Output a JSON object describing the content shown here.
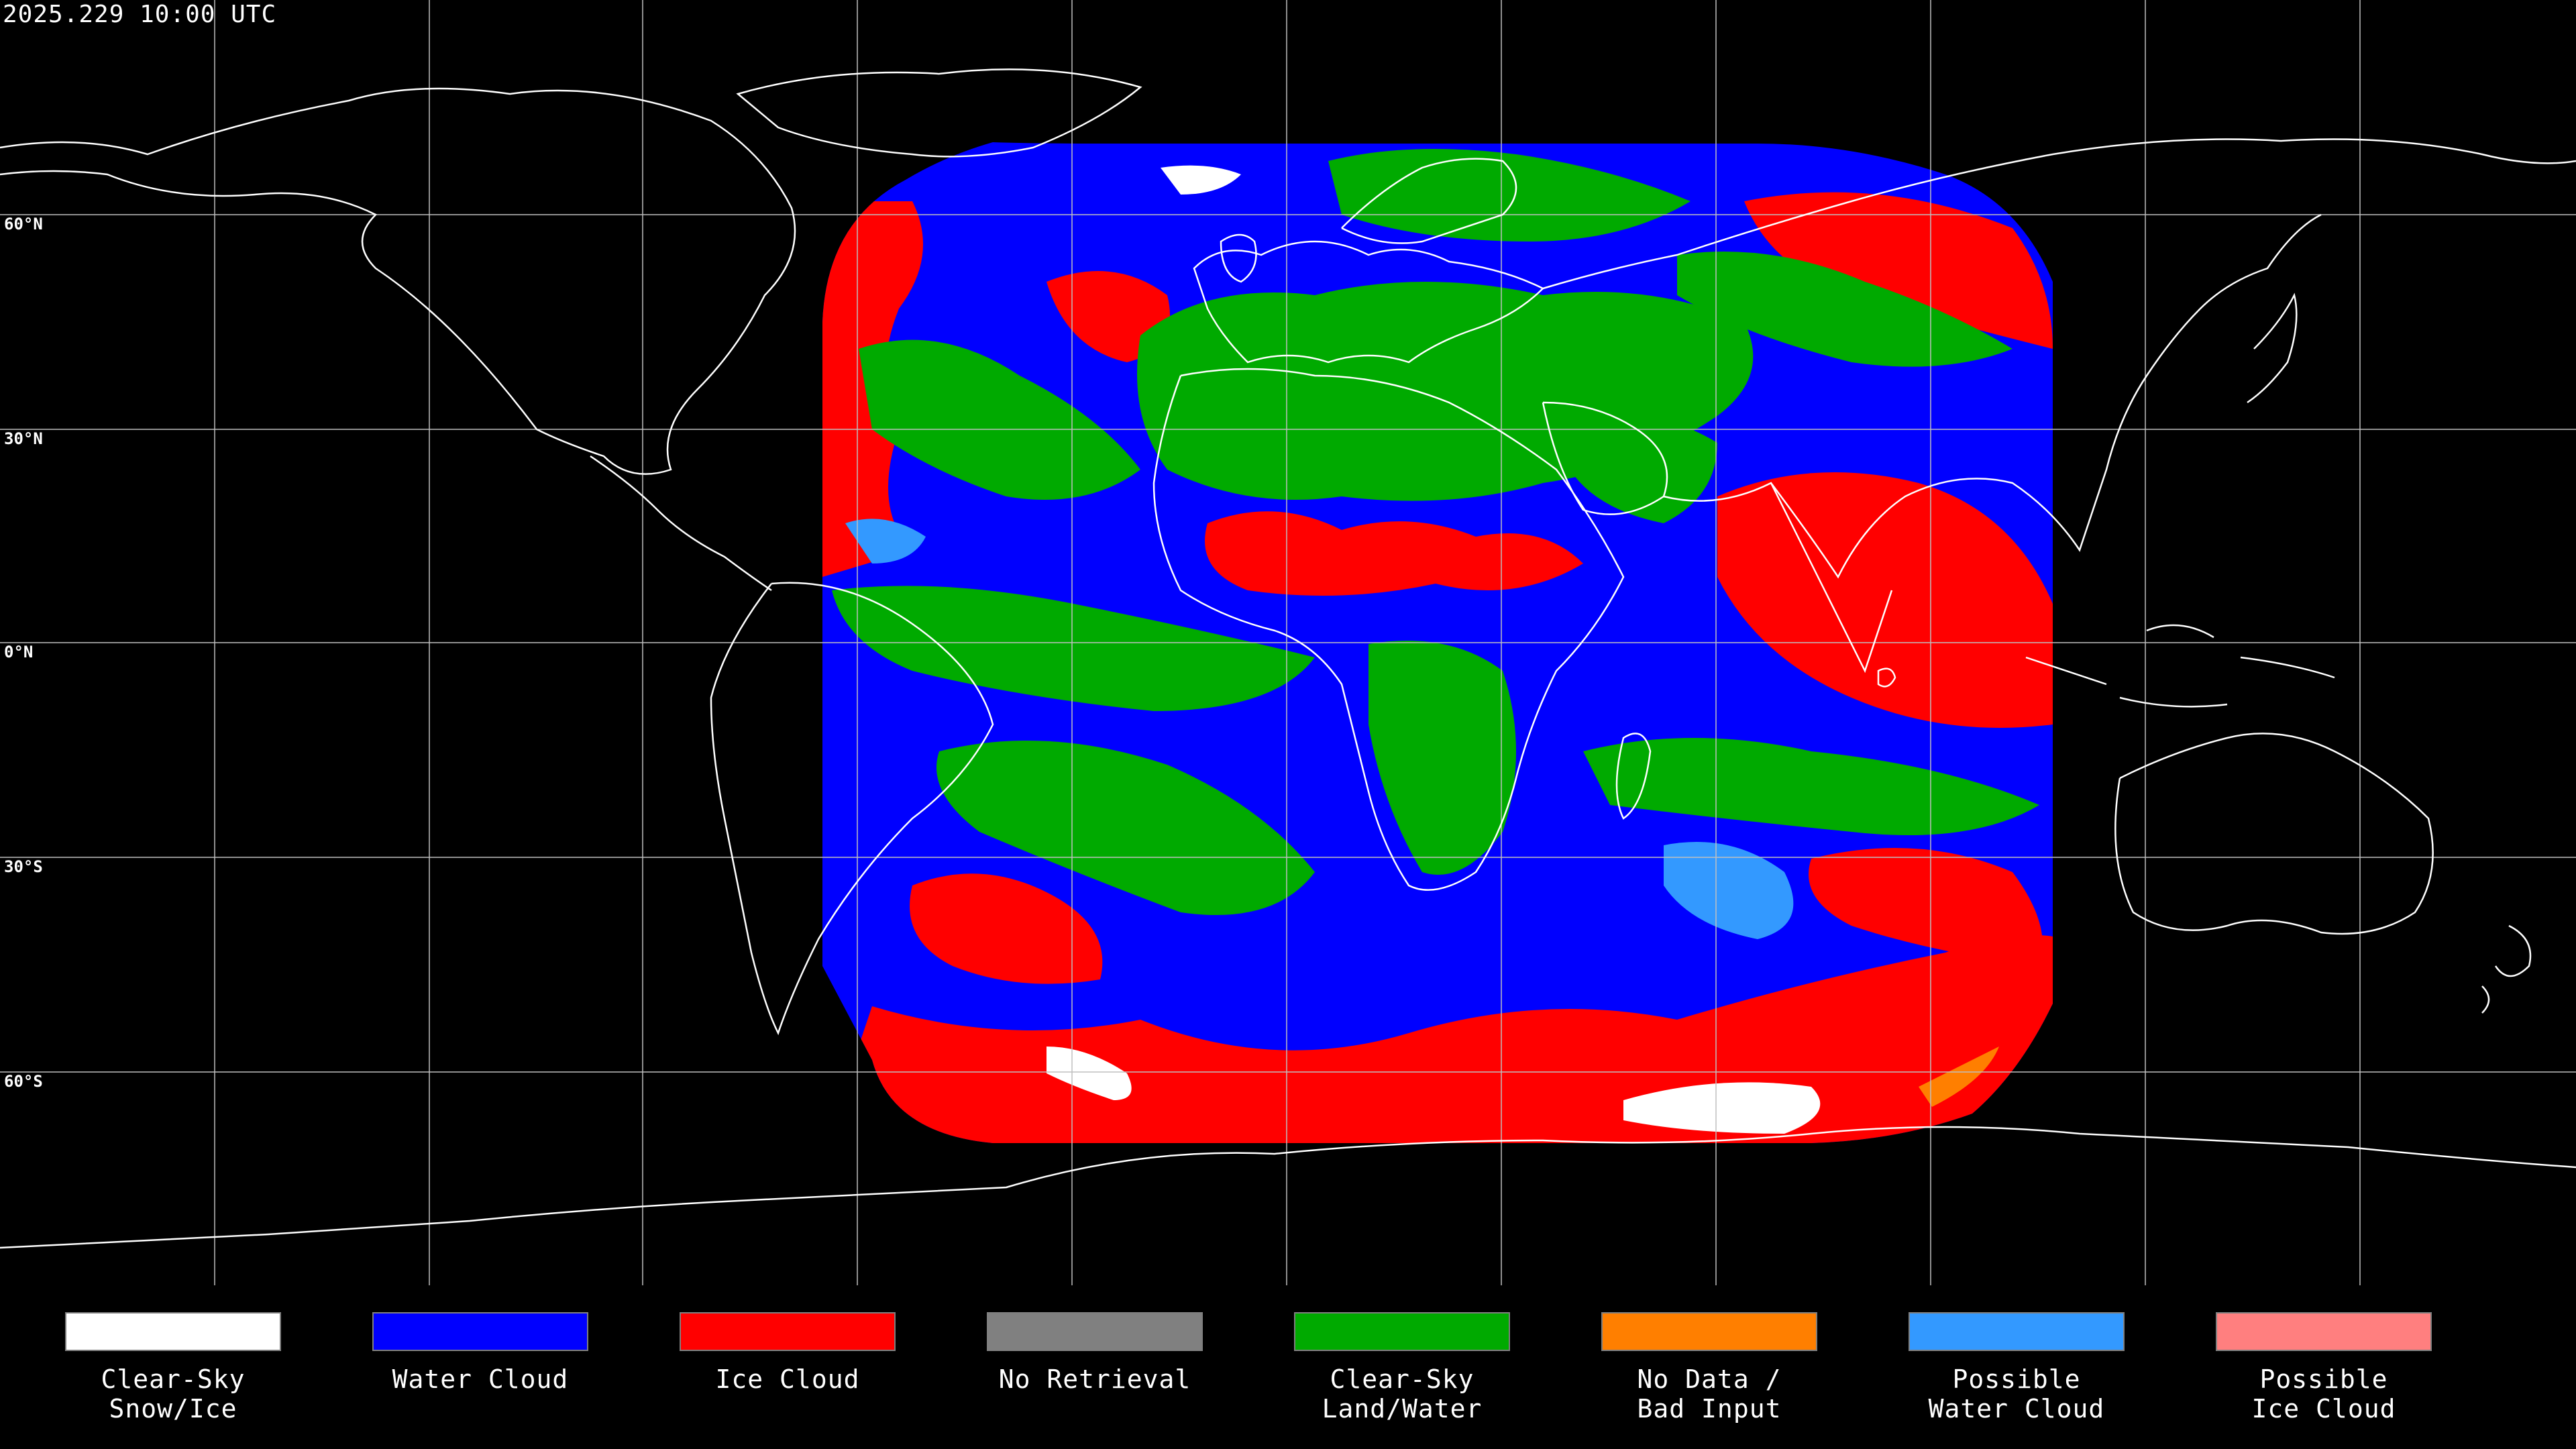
{
  "header": {
    "timestamp": "2025.229 10:00 UTC"
  },
  "map": {
    "lat_labels": [
      "60°N",
      "30°N",
      "0°N",
      "30°S",
      "60°S"
    ],
    "grid_color": "#bfbfbf",
    "coast_color": "#ffffff"
  },
  "legend": {
    "items": [
      {
        "label": "Clear-Sky\nSnow/Ice",
        "color": "#ffffff"
      },
      {
        "label": "Water Cloud",
        "color": "#0000ff"
      },
      {
        "label": "Ice Cloud",
        "color": "#ff0000"
      },
      {
        "label": "No Retrieval",
        "color": "#808080"
      },
      {
        "label": "Clear-Sky\nLand/Water",
        "color": "#00aa00"
      },
      {
        "label": "No Data /\nBad Input",
        "color": "#ff7f00"
      },
      {
        "label": "Possible\nWater Cloud",
        "color": "#3399ff"
      },
      {
        "label": "Possible\nIce Cloud",
        "color": "#ff7f7f"
      }
    ]
  }
}
